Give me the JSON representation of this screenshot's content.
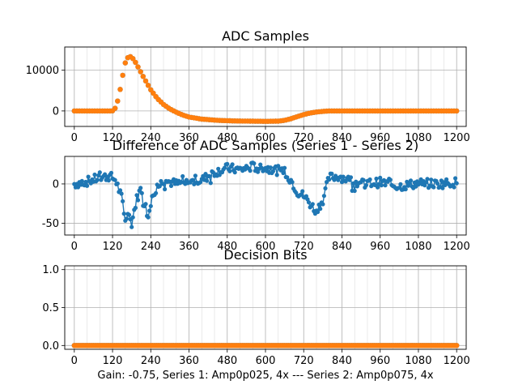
{
  "figure": {
    "xlabel": "Gain: -0.75, Series 1: Amp0p025, 4x --- Series 2: Amp0p075, 4x"
  },
  "colors": {
    "series1": "#1f77b4",
    "series2": "#ff7f0e",
    "grid": "#b0b0b0"
  },
  "chart_data": [
    {
      "type": "scatter",
      "title": "ADC Samples",
      "xlim": [
        -30,
        1230
      ],
      "ylim": [
        -3800,
        15700
      ],
      "xticks": [
        0,
        120,
        240,
        360,
        480,
        600,
        720,
        840,
        960,
        1080,
        1200
      ],
      "yticks": [
        0,
        10000
      ],
      "grid": true,
      "series": [
        {
          "color": "#1f77b4",
          "x": [
            0,
            110,
            120,
            130,
            140,
            150,
            160,
            170,
            180,
            190,
            200,
            220,
            240,
            260,
            280,
            300,
            320,
            340,
            360,
            400,
            450,
            500,
            550,
            600,
            640,
            660,
            680,
            700,
            720,
            740,
            760,
            780,
            800,
            820,
            840,
            900,
            1000,
            1100,
            1200
          ],
          "y": [
            0,
            0,
            50,
            800,
            3500,
            8000,
            11800,
            13400,
            13300,
            12200,
            10800,
            7900,
            5200,
            3100,
            1600,
            500,
            -300,
            -1000,
            -1500,
            -2000,
            -2300,
            -2450,
            -2500,
            -2550,
            -2500,
            -2300,
            -1900,
            -1400,
            -900,
            -500,
            -250,
            -100,
            0,
            0,
            0,
            0,
            0,
            0,
            0
          ]
        },
        {
          "color": "#ff7f0e",
          "x": [
            0,
            110,
            120,
            130,
            140,
            150,
            160,
            170,
            180,
            190,
            200,
            220,
            240,
            260,
            280,
            300,
            320,
            340,
            360,
            400,
            450,
            500,
            550,
            600,
            640,
            660,
            680,
            700,
            720,
            740,
            760,
            780,
            800,
            820,
            840,
            900,
            1000,
            1100,
            1200
          ],
          "y": [
            0,
            0,
            50,
            800,
            3500,
            8000,
            11800,
            13400,
            13300,
            12200,
            10800,
            7900,
            5200,
            3100,
            1600,
            500,
            -300,
            -1000,
            -1500,
            -2000,
            -2300,
            -2450,
            -2500,
            -2550,
            -2500,
            -2300,
            -1900,
            -1400,
            -900,
            -500,
            -250,
            -100,
            0,
            0,
            0,
            0,
            0,
            0,
            0
          ]
        }
      ]
    },
    {
      "type": "line",
      "title": "Difference of ADC Samples (Series 1 - Series 2)",
      "xlim": [
        -30,
        1230
      ],
      "ylim": [
        -65,
        35
      ],
      "xticks": [
        0,
        120,
        240,
        360,
        480,
        600,
        720,
        840,
        960,
        1080,
        1200
      ],
      "yticks": [
        0,
        -50
      ],
      "grid": true,
      "series": [
        {
          "color": "#1f77b4",
          "x": [
            0,
            40,
            80,
            110,
            130,
            150,
            160,
            170,
            180,
            195,
            210,
            230,
            250,
            280,
            320,
            360,
            400,
            440,
            480,
            520,
            560,
            600,
            630,
            660,
            680,
            700,
            720,
            740,
            760,
            780,
            800,
            830,
            860,
            900,
            960,
            1020,
            1080,
            1140,
            1200
          ],
          "y": [
            0,
            3,
            8,
            10,
            5,
            -20,
            -45,
            -40,
            -50,
            -20,
            -5,
            -40,
            -10,
            5,
            0,
            2,
            5,
            15,
            20,
            18,
            22,
            20,
            18,
            15,
            5,
            -10,
            -15,
            -25,
            -35,
            -20,
            8,
            10,
            5,
            0,
            2,
            -3,
            1,
            0,
            2
          ]
        }
      ]
    },
    {
      "type": "scatter",
      "title": "Decision Bits",
      "xlim": [
        -30,
        1230
      ],
      "ylim": [
        -0.05,
        1.05
      ],
      "xticks": [
        0,
        120,
        240,
        360,
        480,
        600,
        720,
        840,
        960,
        1080,
        1200
      ],
      "yticks": [
        0.0,
        0.5,
        1.0
      ],
      "grid": true,
      "series": [
        {
          "color": "#1f77b4",
          "x": [
            0,
            1200
          ],
          "y": [
            0,
            0
          ]
        },
        {
          "color": "#ff7f0e",
          "x": [
            0,
            1200
          ],
          "y": [
            0,
            0
          ]
        }
      ]
    }
  ]
}
